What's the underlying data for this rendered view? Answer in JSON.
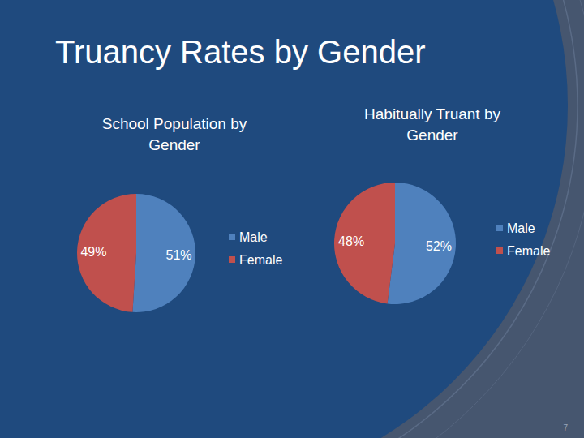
{
  "title": "Truancy Rates by Gender",
  "page_number": 7,
  "chart_data": [
    {
      "type": "pie",
      "title": "School Population by Gender",
      "categories": [
        "Male",
        "Female"
      ],
      "values": [
        51,
        49
      ],
      "colors": [
        "#4f81bd",
        "#c0504d"
      ],
      "data_labels": true,
      "legend": "right"
    },
    {
      "type": "pie",
      "title": "Habitually Truant by Gender",
      "categories": [
        "Male",
        "Female"
      ],
      "values": [
        52,
        48
      ],
      "colors": [
        "#4f81bd",
        "#c0504d"
      ],
      "data_labels": true,
      "legend": "right"
    }
  ]
}
